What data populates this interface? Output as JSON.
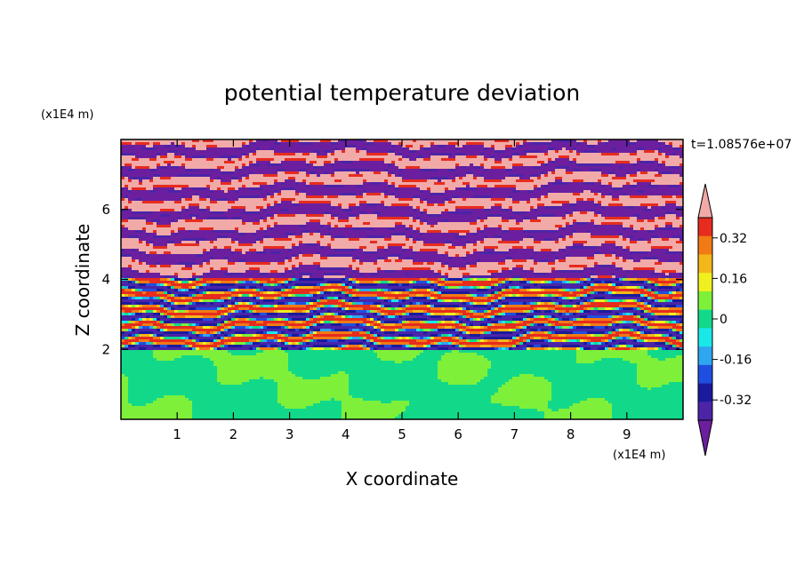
{
  "chart_data": {
    "type": "heatmap",
    "title": "potential temperature deviation",
    "time_label": "t=1.08576e+07",
    "xlabel": "X coordinate",
    "ylabel": "Z coordinate",
    "x_unit": "(x1E4 m)",
    "y_unit": "(x1E4 m)",
    "xlim": [
      0,
      10
    ],
    "ylim": [
      0,
      8
    ],
    "x_ticks": [
      "1",
      "2",
      "3",
      "4",
      "5",
      "6",
      "7",
      "8",
      "9"
    ],
    "y_ticks": [
      "2",
      "4",
      "6"
    ],
    "colorbar": {
      "levels": [
        -0.48,
        -0.4,
        -0.32,
        -0.24,
        -0.16,
        -0.08,
        0,
        0.08,
        0.16,
        0.24,
        0.32,
        0.4,
        0.48
      ],
      "tick_labels": [
        "0.32",
        "0.16",
        "0",
        "-0.16",
        "-0.32"
      ],
      "colors": [
        "#6b1f9e",
        "#4b24a8",
        "#1a1a9c",
        "#1f4fe0",
        "#2ea6f0",
        "#1ae8e8",
        "#12d98a",
        "#7ef03a",
        "#f0f020",
        "#f2b81a",
        "#f27a14",
        "#e62c1e",
        "#f2aaa8"
      ]
    },
    "regions": [
      {
        "z_range": [
          0,
          2
        ],
        "description_values": [
          -0.04,
          0.04
        ]
      },
      {
        "z_range": [
          2,
          4
        ],
        "description_values": [
          -0.5,
          0.5
        ]
      },
      {
        "z_range": [
          4,
          8
        ],
        "description_values": [
          -0.5,
          0.5
        ]
      }
    ]
  }
}
